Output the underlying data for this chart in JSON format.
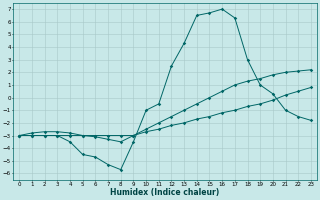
{
  "xlabel": "Humidex (Indice chaleur)",
  "bg_color": "#c8e8e8",
  "grid_color": "#a8c8c8",
  "line_color": "#006666",
  "xlim": [
    -0.5,
    23.5
  ],
  "ylim": [
    -6.5,
    7.5
  ],
  "xticks": [
    0,
    1,
    2,
    3,
    4,
    5,
    6,
    7,
    8,
    9,
    10,
    11,
    12,
    13,
    14,
    15,
    16,
    17,
    18,
    19,
    20,
    21,
    22,
    23
  ],
  "yticks": [
    -6,
    -5,
    -4,
    -3,
    -2,
    -1,
    0,
    1,
    2,
    3,
    4,
    5,
    6,
    7
  ],
  "line1_x": [
    0,
    1,
    2,
    3,
    4,
    5,
    6,
    7,
    8,
    9,
    10,
    11,
    12,
    13,
    14,
    15,
    16,
    17,
    18,
    19,
    20,
    21,
    22,
    23
  ],
  "line1_y": [
    -3,
    -3,
    -3,
    -3,
    -3.5,
    -4.5,
    -4.7,
    -5.3,
    -5.7,
    -3.5,
    -1,
    -0.5,
    2.5,
    4.3,
    6.5,
    6.7,
    7,
    6.3,
    3,
    1,
    0.3,
    -1,
    -1.5,
    -1.8
  ],
  "line2_x": [
    0,
    1,
    2,
    3,
    4,
    5,
    6,
    7,
    8,
    9,
    10,
    11,
    12,
    13,
    14,
    15,
    16,
    17,
    18,
    19,
    20,
    21,
    22,
    23
  ],
  "line2_y": [
    -3,
    -3,
    -3,
    -3,
    -3,
    -3,
    -3,
    -3,
    -3,
    -3,
    -2.7,
    -2.5,
    -2.2,
    -2,
    -1.7,
    -1.5,
    -1.2,
    -1,
    -0.7,
    -0.5,
    -0.2,
    0.2,
    0.5,
    0.8
  ],
  "line3_x": [
    0,
    1,
    2,
    3,
    4,
    5,
    6,
    7,
    8,
    9,
    10,
    11,
    12,
    13,
    14,
    15,
    16,
    17,
    18,
    19,
    20,
    21,
    22,
    23
  ],
  "line3_y": [
    -3,
    -2.8,
    -2.7,
    -2.7,
    -2.8,
    -3,
    -3.1,
    -3.3,
    -3.5,
    -3,
    -2.5,
    -2,
    -1.5,
    -1,
    -0.5,
    0,
    0.5,
    1,
    1.3,
    1.5,
    1.8,
    2,
    2.1,
    2.2
  ]
}
